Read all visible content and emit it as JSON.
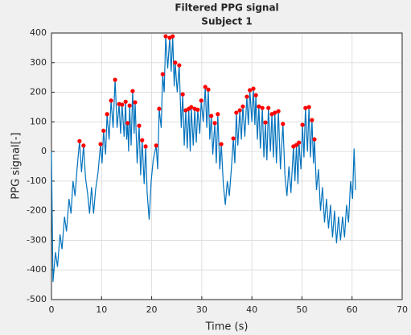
{
  "chart_data": {
    "type": "line",
    "title": "Filtered PPG signal",
    "subtitle": "Subject 1",
    "xlabel": "Time (s)",
    "ylabel": "PPG signal[-]",
    "xlim": [
      0,
      70
    ],
    "xticks": [
      0,
      10,
      20,
      30,
      40,
      50,
      60,
      70
    ],
    "ylim": [
      -500,
      400
    ],
    "yticks": [
      -500,
      -400,
      -300,
      -200,
      -100,
      0,
      100,
      200,
      300,
      400
    ],
    "grid": true,
    "series": [
      {
        "type": "line",
        "color": "#0072bd",
        "x": [
          0,
          0.3,
          0.8,
          1.2,
          1.7,
          2.1,
          2.6,
          3.0,
          3.5,
          3.9,
          4.3,
          4.7,
          5.1,
          5.6,
          6.0,
          6.4,
          6.8,
          7.2,
          7.6,
          8.0,
          8.4,
          8.8,
          9.3,
          9.8,
          10.1,
          10.4,
          10.8,
          11.1,
          11.5,
          11.9,
          12.3,
          12.7,
          13.1,
          13.5,
          13.8,
          14.1,
          14.5,
          14.8,
          15.0,
          15.2,
          15.4,
          15.6,
          15.9,
          16.2,
          16.5,
          16.7,
          17.1,
          17.5,
          17.8,
          18.1,
          18.5,
          18.8,
          19.1,
          19.5,
          19.9,
          20.3,
          20.9,
          21.2,
          21.5,
          21.9,
          22.2,
          22.5,
          22.8,
          23.2,
          23.6,
          23.9,
          24.2,
          24.5,
          24.7,
          25.1,
          25.5,
          25.9,
          26.2,
          26.5,
          26.8,
          27.1,
          27.4,
          27.7,
          27.9,
          28.3,
          28.6,
          28.9,
          29.2,
          29.6,
          29.9,
          30.3,
          30.7,
          31.0,
          31.3,
          31.6,
          31.9,
          32.2,
          32.6,
          32.9,
          33.2,
          33.6,
          33.9,
          34.3,
          34.7,
          35.1,
          35.5,
          35.9,
          36.3,
          36.6,
          36.9,
          37.2,
          37.6,
          37.9,
          38.2,
          38.6,
          39.0,
          39.3,
          39.6,
          40.0,
          40.3,
          40.6,
          40.8,
          41.1,
          41.4,
          41.7,
          42.1,
          42.4,
          42.7,
          43.0,
          43.3,
          43.7,
          44.0,
          44.3,
          44.6,
          44.9,
          45.3,
          45.7,
          46.2,
          46.6,
          47.0,
          47.4,
          47.8,
          48.3,
          48.6,
          48.9,
          49.2,
          49.4,
          49.8,
          50.1,
          50.4,
          50.7,
          51.1,
          51.4,
          51.7,
          52.0,
          52.3,
          52.5,
          52.9,
          53.3,
          53.7,
          54.1,
          54.5,
          54.9,
          55.3,
          55.7,
          56.1,
          56.5,
          56.9,
          57.3,
          57.7,
          58.1,
          58.5,
          58.9,
          59.3,
          59.7,
          60.1,
          60.4,
          60.7
        ],
        "values": [
          0,
          -440,
          -340,
          -390,
          -280,
          -330,
          -220,
          -270,
          -160,
          -210,
          -100,
          -150,
          -60,
          35,
          -70,
          20,
          -90,
          -140,
          -210,
          -120,
          -210,
          -130,
          -70,
          25,
          -40,
          70,
          -10,
          126,
          40,
          172,
          80,
          242,
          80,
          160,
          60,
          158,
          50,
          168,
          40,
          96,
          0,
          155,
          20,
          204,
          60,
          166,
          -40,
          87,
          -80,
          38,
          -110,
          17,
          -140,
          -230,
          -100,
          -30,
          20,
          -60,
          144,
          80,
          261,
          200,
          389,
          280,
          384,
          270,
          389,
          220,
          300,
          200,
          291,
          80,
          193,
          20,
          139,
          10,
          144,
          0,
          150,
          20,
          144,
          30,
          141,
          60,
          172,
          100,
          218,
          80,
          209,
          40,
          120,
          -10,
          96,
          -40,
          126,
          -60,
          25,
          -110,
          -180,
          -100,
          -150,
          -60,
          44,
          -40,
          131,
          20,
          139,
          40,
          152,
          50,
          185,
          90,
          207,
          100,
          212,
          90,
          190,
          40,
          152,
          10,
          147,
          -20,
          98,
          -30,
          147,
          0,
          126,
          -20,
          131,
          -40,
          136,
          -60,
          93,
          -80,
          -150,
          -50,
          -140,
          17,
          -100,
          22,
          -110,
          30,
          -60,
          90,
          -20,
          147,
          0,
          150,
          -20,
          106,
          -40,
          41,
          -130,
          -60,
          -200,
          -120,
          -240,
          -160,
          -260,
          -180,
          -290,
          -200,
          -310,
          -220,
          -300,
          -220,
          -290,
          -180,
          -240,
          -100,
          -160,
          10,
          -130
        ]
      },
      {
        "type": "scatter",
        "color": "#ff0000",
        "x": [
          5.6,
          6.4,
          9.8,
          10.4,
          11.1,
          11.9,
          12.7,
          13.5,
          14.1,
          14.8,
          15.2,
          15.6,
          16.2,
          16.7,
          17.5,
          18.1,
          18.8,
          20.9,
          21.5,
          22.2,
          22.8,
          23.6,
          24.2,
          24.7,
          25.5,
          26.2,
          26.8,
          27.4,
          27.9,
          28.6,
          29.2,
          29.9,
          30.7,
          31.3,
          31.9,
          32.6,
          33.2,
          33.9,
          36.3,
          36.9,
          37.6,
          38.2,
          39.0,
          39.6,
          40.3,
          40.8,
          41.4,
          42.1,
          42.7,
          43.3,
          44.0,
          44.6,
          45.3,
          46.2,
          48.3,
          48.9,
          49.4,
          50.1,
          50.7,
          51.4,
          52.0,
          52.5
        ],
        "values": [
          35,
          20,
          25,
          70,
          126,
          172,
          242,
          160,
          158,
          168,
          96,
          155,
          204,
          166,
          87,
          38,
          17,
          20,
          144,
          261,
          389,
          384,
          389,
          300,
          291,
          193,
          139,
          144,
          150,
          144,
          141,
          172,
          218,
          209,
          120,
          96,
          126,
          25,
          44,
          131,
          139,
          152,
          185,
          207,
          212,
          190,
          152,
          147,
          98,
          147,
          126,
          131,
          136,
          93,
          17,
          22,
          30,
          90,
          147,
          150,
          106,
          41
        ]
      }
    ]
  }
}
